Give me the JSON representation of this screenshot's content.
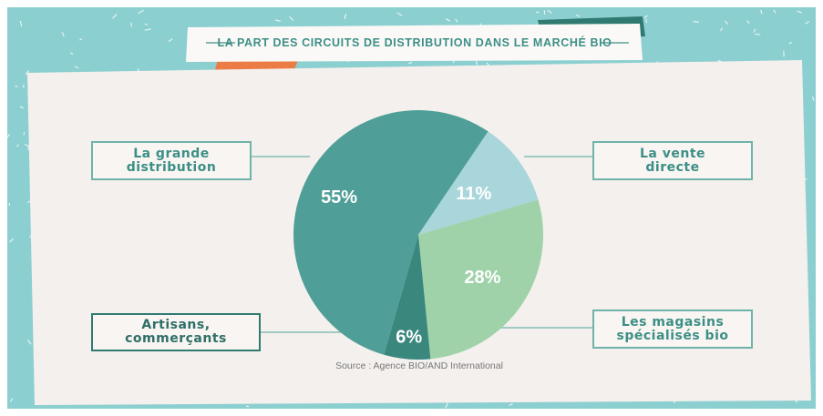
{
  "chart_data": {
    "type": "pie",
    "title": "LA PART DES CIRCUITS DE DISTRIBUTION DANS LE MARCHÉ BIO",
    "source": "Source : Agence BIO/AND International",
    "categories": [
      "La grande distribution",
      "La vente directe",
      "Les magasins spécialisés bio",
      "Artisans, commerçants"
    ],
    "values": [
      55,
      11,
      28,
      6
    ],
    "value_labels": [
      "55%",
      "11%",
      "28%",
      "6%"
    ],
    "colors": [
      "#4f9f98",
      "#a9d6da",
      "#9fd2a9",
      "#3a877e"
    ]
  }
}
